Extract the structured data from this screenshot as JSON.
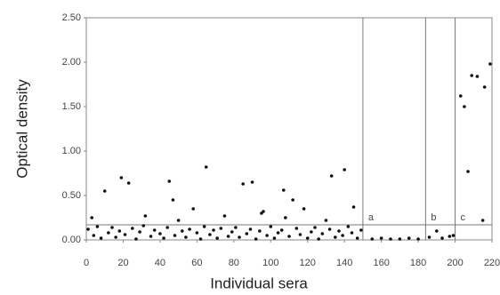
{
  "chart_data": {
    "type": "scatter",
    "xlabel": "Individual sera",
    "ylabel": "Optical density",
    "xlim": [
      0,
      220
    ],
    "ylim": [
      0,
      2.5
    ],
    "xticks": [
      0,
      20,
      40,
      60,
      80,
      100,
      120,
      140,
      160,
      180,
      200,
      220
    ],
    "yticks": [
      {
        "value": 0,
        "label": "0.00"
      },
      {
        "value": 0.5,
        "label": "0.50"
      },
      {
        "value": 1,
        "label": "1.00"
      },
      {
        "value": 1.5,
        "label": "1.50"
      },
      {
        "value": 2,
        "label": "2.00"
      },
      {
        "value": 2.5,
        "label": "2.50"
      }
    ],
    "vlines": [
      150,
      184,
      200
    ],
    "region_labels": [
      "a",
      "b",
      "c"
    ],
    "hline": 0.17,
    "series": [
      {
        "color": "#111111",
        "x": [
          1,
          4,
          6,
          8,
          12,
          14,
          16,
          18,
          21,
          25,
          27,
          29,
          31,
          35,
          37,
          40,
          42,
          44,
          48,
          52,
          54,
          56,
          60,
          62,
          64,
          67,
          69,
          71,
          73,
          77,
          79,
          81,
          83,
          87,
          89,
          92,
          94,
          98,
          100,
          102,
          104,
          106,
          110,
          114,
          116,
          120,
          122,
          124,
          126,
          128,
          132,
          135,
          137,
          139,
          142,
          144,
          147,
          149,
          155,
          160,
          165,
          170,
          175,
          180,
          186,
          193,
          197,
          199,
          10,
          19,
          23,
          45,
          47,
          58,
          65,
          85,
          90,
          95,
          107,
          112,
          118,
          133,
          140,
          145,
          3,
          32,
          50,
          75,
          96,
          108,
          130,
          203,
          205,
          207,
          209,
          212,
          216,
          219,
          215,
          190
        ],
        "values": [
          0.12,
          0.05,
          0.15,
          0.02,
          0.08,
          0.14,
          0.03,
          0.1,
          0.06,
          0.13,
          0.01,
          0.09,
          0.16,
          0.04,
          0.11,
          0.07,
          0.02,
          0.14,
          0.05,
          0.1,
          0.03,
          0.12,
          0.08,
          0.01,
          0.15,
          0.06,
          0.11,
          0.02,
          0.13,
          0.04,
          0.09,
          0.14,
          0.03,
          0.07,
          0.12,
          0.01,
          0.1,
          0.05,
          0.15,
          0.02,
          0.08,
          0.11,
          0.04,
          0.13,
          0.06,
          0.02,
          0.09,
          0.14,
          0.01,
          0.07,
          0.12,
          0.03,
          0.1,
          0.05,
          0.15,
          0.08,
          0.02,
          0.11,
          0.01,
          0.02,
          0.01,
          0.01,
          0.02,
          0.01,
          0.03,
          0.02,
          0.04,
          0.05,
          0.55,
          0.7,
          0.64,
          0.66,
          0.45,
          0.35,
          0.82,
          0.63,
          0.65,
          0.3,
          0.56,
          0.45,
          0.35,
          0.72,
          0.79,
          0.37,
          0.25,
          0.27,
          0.22,
          0.27,
          0.32,
          0.25,
          0.22,
          1.62,
          1.5,
          0.77,
          1.85,
          1.84,
          1.72,
          1.98,
          0.22,
          0.1
        ]
      }
    ]
  }
}
